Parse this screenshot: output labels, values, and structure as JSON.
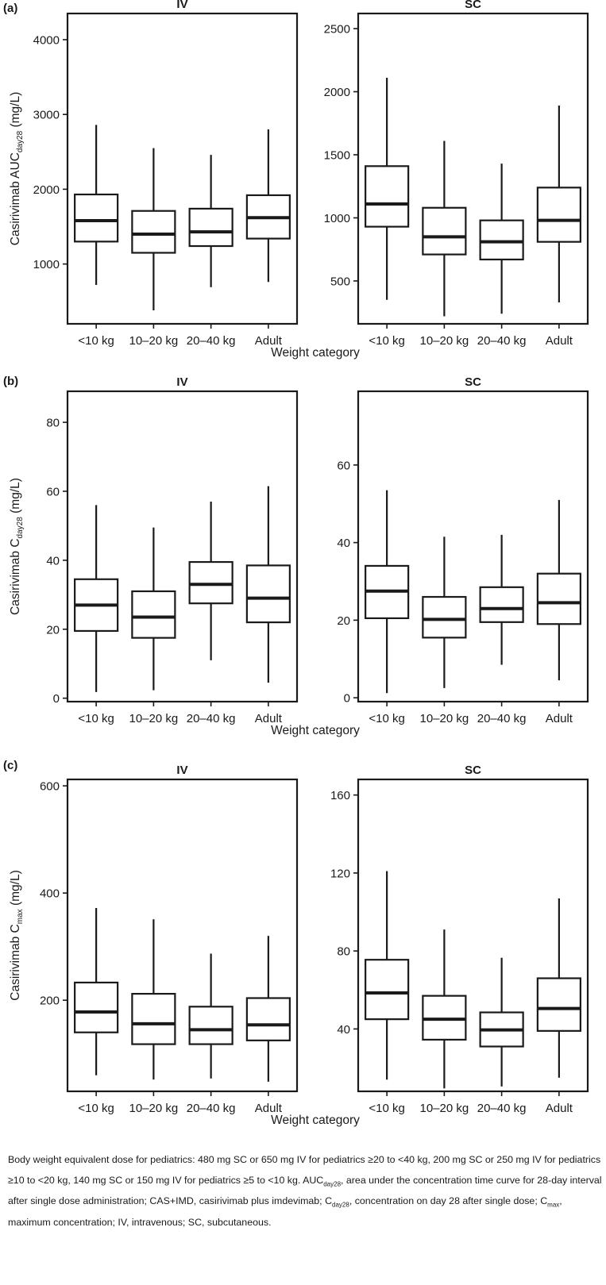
{
  "figure": {
    "xlabel": "Weight category",
    "categories": [
      "<10 kg",
      "10–20 kg",
      "20–40 kg",
      "Adult"
    ]
  },
  "chart_data": [
    {
      "type": "box",
      "panel": "(a)",
      "route": "IV",
      "ylabel_main": "Casirivimab AUC",
      "ylabel_sub": "day28",
      "ylabel_tail": " (mg/L)",
      "xlabel": "Weight category",
      "ylim": [
        200,
        4350
      ],
      "yticks": [
        1000,
        2000,
        3000,
        4000
      ],
      "categories": [
        "<10 kg",
        "10–20 kg",
        "20–40 kg",
        "Adult"
      ],
      "boxes": [
        {
          "min": 720,
          "q1": 1300,
          "median": 1580,
          "q3": 1930,
          "max": 2860
        },
        {
          "min": 380,
          "q1": 1150,
          "median": 1400,
          "q3": 1710,
          "max": 2550
        },
        {
          "min": 690,
          "q1": 1240,
          "median": 1430,
          "q3": 1740,
          "max": 2460
        },
        {
          "min": 760,
          "q1": 1340,
          "median": 1620,
          "q3": 1920,
          "max": 2800
        }
      ]
    },
    {
      "type": "box",
      "panel": "(a)",
      "route": "SC",
      "ylabel_main": "",
      "ylabel_sub": "",
      "ylabel_tail": "",
      "xlabel": "Weight category",
      "ylim": [
        160,
        2620
      ],
      "yticks": [
        500,
        1000,
        1500,
        2000,
        2500
      ],
      "categories": [
        "<10 kg",
        "10–20 kg",
        "20–40 kg",
        "Adult"
      ],
      "boxes": [
        {
          "min": 350,
          "q1": 930,
          "median": 1110,
          "q3": 1410,
          "max": 2110
        },
        {
          "min": 220,
          "q1": 710,
          "median": 850,
          "q3": 1080,
          "max": 1610
        },
        {
          "min": 240,
          "q1": 670,
          "median": 810,
          "q3": 980,
          "max": 1430
        },
        {
          "min": 330,
          "q1": 810,
          "median": 980,
          "q3": 1240,
          "max": 1890
        }
      ]
    },
    {
      "type": "box",
      "panel": "(b)",
      "route": "IV",
      "ylabel_main": "Casirivimab C",
      "ylabel_sub": "day28",
      "ylabel_tail": " (mg/L)",
      "xlabel": "Weight category",
      "ylim": [
        -1,
        89
      ],
      "yticks": [
        0,
        20,
        40,
        60,
        80
      ],
      "categories": [
        "<10 kg",
        "10–20 kg",
        "20–40 kg",
        "Adult"
      ],
      "boxes": [
        {
          "min": 1.8,
          "q1": 19.5,
          "median": 27,
          "q3": 34.5,
          "max": 56
        },
        {
          "min": 2.3,
          "q1": 17.5,
          "median": 23.5,
          "q3": 31,
          "max": 49.5
        },
        {
          "min": 11,
          "q1": 27.5,
          "median": 33,
          "q3": 39.5,
          "max": 57
        },
        {
          "min": 4.5,
          "q1": 22,
          "median": 29,
          "q3": 38.5,
          "max": 61.5
        }
      ]
    },
    {
      "type": "box",
      "panel": "(b)",
      "route": "SC",
      "ylabel_main": "",
      "ylabel_sub": "",
      "ylabel_tail": "",
      "xlabel": "Weight category",
      "ylim": [
        -1,
        79
      ],
      "yticks": [
        0,
        20,
        40,
        60
      ],
      "categories": [
        "<10 kg",
        "10–20 kg",
        "20–40 kg",
        "Adult"
      ],
      "boxes": [
        {
          "min": 1.2,
          "q1": 20.5,
          "median": 27.5,
          "q3": 34,
          "max": 53.5
        },
        {
          "min": 2.5,
          "q1": 15.5,
          "median": 20.2,
          "q3": 26,
          "max": 41.5
        },
        {
          "min": 8.5,
          "q1": 19.5,
          "median": 23,
          "q3": 28.5,
          "max": 42
        },
        {
          "min": 4.5,
          "q1": 19,
          "median": 24.5,
          "q3": 32,
          "max": 51
        }
      ]
    },
    {
      "type": "box",
      "panel": "(c)",
      "route": "IV",
      "ylabel_main": "Casirivimab C",
      "ylabel_sub": "max",
      "ylabel_tail": " (mg/L)",
      "xlabel": "Weight category",
      "ylim": [
        30,
        612
      ],
      "yticks": [
        200,
        400,
        600
      ],
      "categories": [
        "<10 kg",
        "10–20 kg",
        "20–40 kg",
        "Adult"
      ],
      "boxes": [
        {
          "min": 60,
          "q1": 140,
          "median": 178,
          "q3": 233,
          "max": 372
        },
        {
          "min": 52,
          "q1": 118,
          "median": 156,
          "q3": 212,
          "max": 351
        },
        {
          "min": 54,
          "q1": 118,
          "median": 145,
          "q3": 188,
          "max": 287
        },
        {
          "min": 48,
          "q1": 125,
          "median": 154,
          "q3": 204,
          "max": 320
        }
      ]
    },
    {
      "type": "box",
      "panel": "(c)",
      "route": "SC",
      "ylabel_main": "",
      "ylabel_sub": "",
      "ylabel_tail": "",
      "xlabel": "Weight category",
      "ylim": [
        8,
        168
      ],
      "yticks": [
        40,
        80,
        120,
        160
      ],
      "categories": [
        "<10 kg",
        "10–20 kg",
        "20–40 kg",
        "Adult"
      ],
      "boxes": [
        {
          "min": 14,
          "q1": 45,
          "median": 58.5,
          "q3": 75.5,
          "max": 121
        },
        {
          "min": 9.5,
          "q1": 34.5,
          "median": 45,
          "q3": 57,
          "max": 91
        },
        {
          "min": 10.5,
          "q1": 31,
          "median": 39.5,
          "q3": 48.5,
          "max": 76.5
        },
        {
          "min": 15,
          "q1": 39,
          "median": 50.5,
          "q3": 66,
          "max": 107
        }
      ]
    }
  ],
  "caption": {
    "p1": "Body weight equivalent dose for pediatrics: 480 mg SC or 650 mg IV for pediatrics ≥20 to <40 kg, 200 mg SC or 250 mg IV for pediatrics ≥10 to <20 kg, 140 mg SC or 150 mg IV for pediatrics ≥5 to <10 kg. AUC",
    "sub1": "day28",
    "p2": ", area under the concentration time curve for 28-day interval after single dose administration; CAS+IMD, casirivimab plus imdevimab; C",
    "sub2": "day28",
    "p3": ", concentration on day 28 after single dose; C",
    "sub3": "max",
    "p4": ", maximum concentration; IV, intravenous; SC, subcutaneous."
  }
}
